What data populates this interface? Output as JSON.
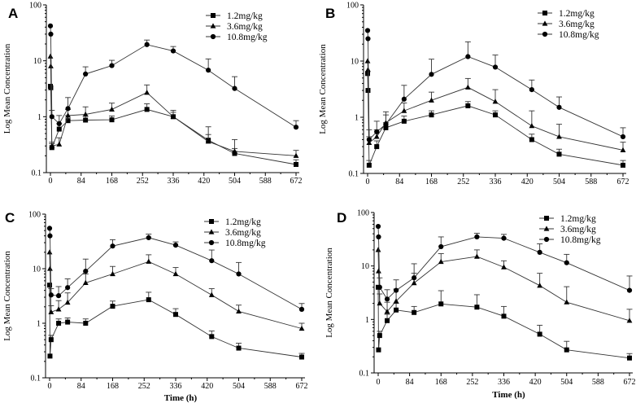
{
  "figure": {
    "ylabel": "Log Mean Concentration",
    "xlabel": "Time (h)",
    "marker_color": "#000000",
    "line_color": "#333333"
  },
  "chart_data": [
    {
      "panel": "A",
      "type": "line",
      "yscale": "log",
      "ylim": [
        0.1,
        100
      ],
      "yticks": [
        0.1,
        1,
        10,
        100
      ],
      "ytick_labels": [
        "0.1",
        "1",
        "10",
        "100"
      ],
      "xlim": [
        -8,
        672
      ],
      "xticks": [
        0,
        84,
        168,
        252,
        336,
        420,
        504,
        588,
        672
      ],
      "xtick_labels": [
        "0",
        "84",
        "168",
        "252",
        "336",
        "420",
        "504",
        "588",
        "672"
      ],
      "xlabel": "",
      "ylabel": "Log Mean Concentration",
      "legend": "top-right",
      "series": [
        {
          "name": "1.2mg/kg",
          "marker": "square",
          "x": [
            0,
            1,
            4,
            24,
            48,
            96,
            168,
            264,
            336,
            432,
            504,
            672
          ],
          "y": [
            3.5,
            3.3,
            0.28,
            0.6,
            0.85,
            0.87,
            0.88,
            1.35,
            1.0,
            0.38,
            0.22,
            0.14
          ],
          "err": [
            0,
            0,
            0.05,
            0.15,
            0.2,
            0.15,
            0.15,
            0.35,
            0.2,
            0.1,
            0.05,
            0.03
          ]
        },
        {
          "name": "3.6mg/kg",
          "marker": "triangle",
          "x": [
            0,
            1,
            4,
            24,
            48,
            96,
            168,
            264,
            336,
            432,
            504,
            672
          ],
          "y": [
            12,
            8,
            0.3,
            0.32,
            1.05,
            1.1,
            1.35,
            2.7,
            1.0,
            0.36,
            0.24,
            0.2
          ],
          "err": [
            0,
            0,
            0.05,
            0.1,
            0.3,
            0.4,
            0.4,
            1.0,
            0.3,
            0.3,
            0.15,
            0.05
          ]
        },
        {
          "name": "10.8mg/kg",
          "marker": "circle",
          "x": [
            0,
            1,
            4,
            24,
            48,
            96,
            168,
            264,
            336,
            432,
            504,
            672
          ],
          "y": [
            42,
            30,
            1.0,
            0.75,
            1.4,
            5.8,
            8.2,
            19.5,
            15,
            6.8,
            3.2,
            0.65
          ],
          "err": [
            0,
            0,
            0.3,
            0.3,
            0.8,
            2.0,
            2.0,
            4.0,
            3.0,
            4.0,
            2.0,
            0.2
          ]
        }
      ]
    },
    {
      "panel": "B",
      "type": "line",
      "yscale": "log",
      "ylim": [
        0.1,
        100
      ],
      "yticks": [
        0.1,
        1,
        10,
        100
      ],
      "ytick_labels": [
        "0.1",
        "1",
        "10",
        "100"
      ],
      "xlim": [
        -8,
        672
      ],
      "xticks": [
        0,
        84,
        168,
        252,
        336,
        420,
        504,
        588,
        672
      ],
      "xtick_labels": [
        "0",
        "84",
        "168",
        "252",
        "336",
        "420",
        "504",
        "588",
        "672"
      ],
      "xlabel": "",
      "ylabel": "Log Mean Concentration",
      "legend": "top-right",
      "series": [
        {
          "name": "1.2mg/kg",
          "marker": "square",
          "x": [
            0,
            1,
            4,
            24,
            48,
            96,
            168,
            264,
            336,
            432,
            504,
            672
          ],
          "y": [
            6,
            3,
            0.14,
            0.3,
            0.65,
            0.85,
            1.1,
            1.6,
            1.1,
            0.4,
            0.22,
            0.14
          ],
          "err": [
            0,
            0,
            0.03,
            0.08,
            0.15,
            0.2,
            0.2,
            0.3,
            0.2,
            0.1,
            0.05,
            0.03
          ]
        },
        {
          "name": "3.6mg/kg",
          "marker": "triangle",
          "x": [
            0,
            1,
            4,
            24,
            48,
            96,
            168,
            264,
            336,
            432,
            504,
            672
          ],
          "y": [
            10,
            7,
            0.35,
            0.45,
            0.8,
            1.3,
            2.0,
            3.4,
            1.9,
            0.7,
            0.45,
            0.26
          ],
          "err": [
            0,
            0,
            0.1,
            0.15,
            0.3,
            0.5,
            0.8,
            1.5,
            1.2,
            0.6,
            0.3,
            0.1
          ]
        },
        {
          "name": "10.8mg/kg",
          "marker": "circle",
          "x": [
            0,
            1,
            4,
            24,
            48,
            96,
            168,
            264,
            336,
            432,
            504,
            672
          ],
          "y": [
            35,
            25,
            0.4,
            0.55,
            0.75,
            2.1,
            5.8,
            12,
            7.8,
            3.1,
            1.5,
            0.45
          ],
          "err": [
            0,
            0,
            0.2,
            0.3,
            0.5,
            1.6,
            5.0,
            10.0,
            5.0,
            1.5,
            0.8,
            0.2
          ]
        }
      ]
    },
    {
      "panel": "C",
      "type": "line",
      "yscale": "log",
      "ylim": [
        0.1,
        100
      ],
      "yticks": [
        0.1,
        1,
        10,
        100
      ],
      "ytick_labels": [
        "0.1",
        "1",
        "10",
        "100"
      ],
      "xlim": [
        -8,
        672
      ],
      "xticks": [
        0,
        84,
        168,
        252,
        336,
        420,
        504,
        588,
        672
      ],
      "xtick_labels": [
        "0",
        "84",
        "168",
        "252",
        "336",
        "420",
        "504",
        "588",
        "672"
      ],
      "xlabel": "Time (h)",
      "ylabel": "Log Mean Concentration",
      "legend": "top-right",
      "series": [
        {
          "name": "1.2mg/kg",
          "marker": "square",
          "x": [
            0,
            1,
            4,
            24,
            48,
            96,
            168,
            264,
            336,
            432,
            504,
            672
          ],
          "y": [
            5,
            0.25,
            0.5,
            1.0,
            1.05,
            1.0,
            2.05,
            2.7,
            1.45,
            0.57,
            0.35,
            0.24
          ],
          "err": [
            0,
            0,
            0.1,
            0.2,
            0.2,
            0.2,
            0.5,
            1.0,
            0.4,
            0.15,
            0.08,
            0.04
          ]
        },
        {
          "name": "3.6mg/kg",
          "marker": "triangle",
          "x": [
            0,
            1,
            4,
            24,
            48,
            96,
            168,
            264,
            336,
            432,
            504,
            672
          ],
          "y": [
            20,
            10,
            1.6,
            1.8,
            2.4,
            5.5,
            8.0,
            13.5,
            8.0,
            3.3,
            1.65,
            0.8
          ],
          "err": [
            0,
            0,
            0.5,
            0.8,
            1.2,
            2.5,
            3.0,
            4.5,
            2.5,
            1.0,
            0.5,
            0.2
          ]
        },
        {
          "name": "10.8mg/kg",
          "marker": "circle",
          "x": [
            0,
            1,
            4,
            24,
            48,
            96,
            168,
            264,
            336,
            432,
            504,
            672
          ],
          "y": [
            55,
            40,
            3.3,
            3.2,
            4.5,
            9.0,
            26,
            37,
            27,
            14,
            8.0,
            1.8
          ],
          "err": [
            0,
            0,
            1.0,
            1.5,
            2.0,
            6.0,
            8.0,
            6.0,
            4.0,
            8.0,
            5.0,
            0.5
          ]
        }
      ]
    },
    {
      "panel": "D",
      "type": "line",
      "yscale": "log",
      "ylim": [
        0.1,
        100
      ],
      "yticks": [
        0.1,
        1,
        10,
        100
      ],
      "ytick_labels": [
        "0.1",
        "1",
        "10",
        "100"
      ],
      "xlim": [
        -8,
        672
      ],
      "xticks": [
        0,
        84,
        168,
        252,
        336,
        420,
        504,
        588,
        672
      ],
      "xtick_labels": [
        "0",
        "84",
        "168",
        "252",
        "336",
        "420",
        "504",
        "588",
        "672"
      ],
      "xlabel": "Time (h)",
      "ylabel": "Log Mean Concentration",
      "legend": "top-right",
      "series": [
        {
          "name": "1.2mg/kg",
          "marker": "square",
          "x": [
            0,
            1,
            4,
            24,
            48,
            96,
            168,
            264,
            336,
            432,
            504,
            672
          ],
          "y": [
            4,
            0.27,
            0.5,
            0.95,
            1.5,
            1.35,
            1.95,
            1.7,
            1.15,
            0.53,
            0.27,
            0.19
          ],
          "err": [
            0,
            0,
            0.1,
            0.3,
            0.5,
            0.4,
            1.5,
            1.2,
            0.6,
            0.25,
            0.12,
            0.04
          ]
        },
        {
          "name": "3.6mg/kg",
          "marker": "triangle",
          "x": [
            0,
            1,
            4,
            24,
            48,
            96,
            168,
            264,
            336,
            432,
            504,
            672
          ],
          "y": [
            20,
            8,
            2.0,
            1.4,
            2.2,
            4.8,
            12,
            15,
            9.5,
            4.3,
            2.1,
            0.95
          ],
          "err": [
            0,
            0,
            1.0,
            0.7,
            1.5,
            2.5,
            5.0,
            5.0,
            3.0,
            3.0,
            2.0,
            0.6
          ]
        },
        {
          "name": "10.8mg/kg",
          "marker": "circle",
          "x": [
            0,
            1,
            4,
            24,
            48,
            96,
            168,
            264,
            336,
            432,
            504,
            672
          ],
          "y": [
            55,
            35,
            4.0,
            2.4,
            3.5,
            6.0,
            23,
            35,
            33,
            18,
            11.5,
            3.5
          ],
          "err": [
            0,
            0,
            2.0,
            1.2,
            2.0,
            5.0,
            12.0,
            6.0,
            6.0,
            8.0,
            5.0,
            3.0
          ]
        }
      ]
    }
  ]
}
